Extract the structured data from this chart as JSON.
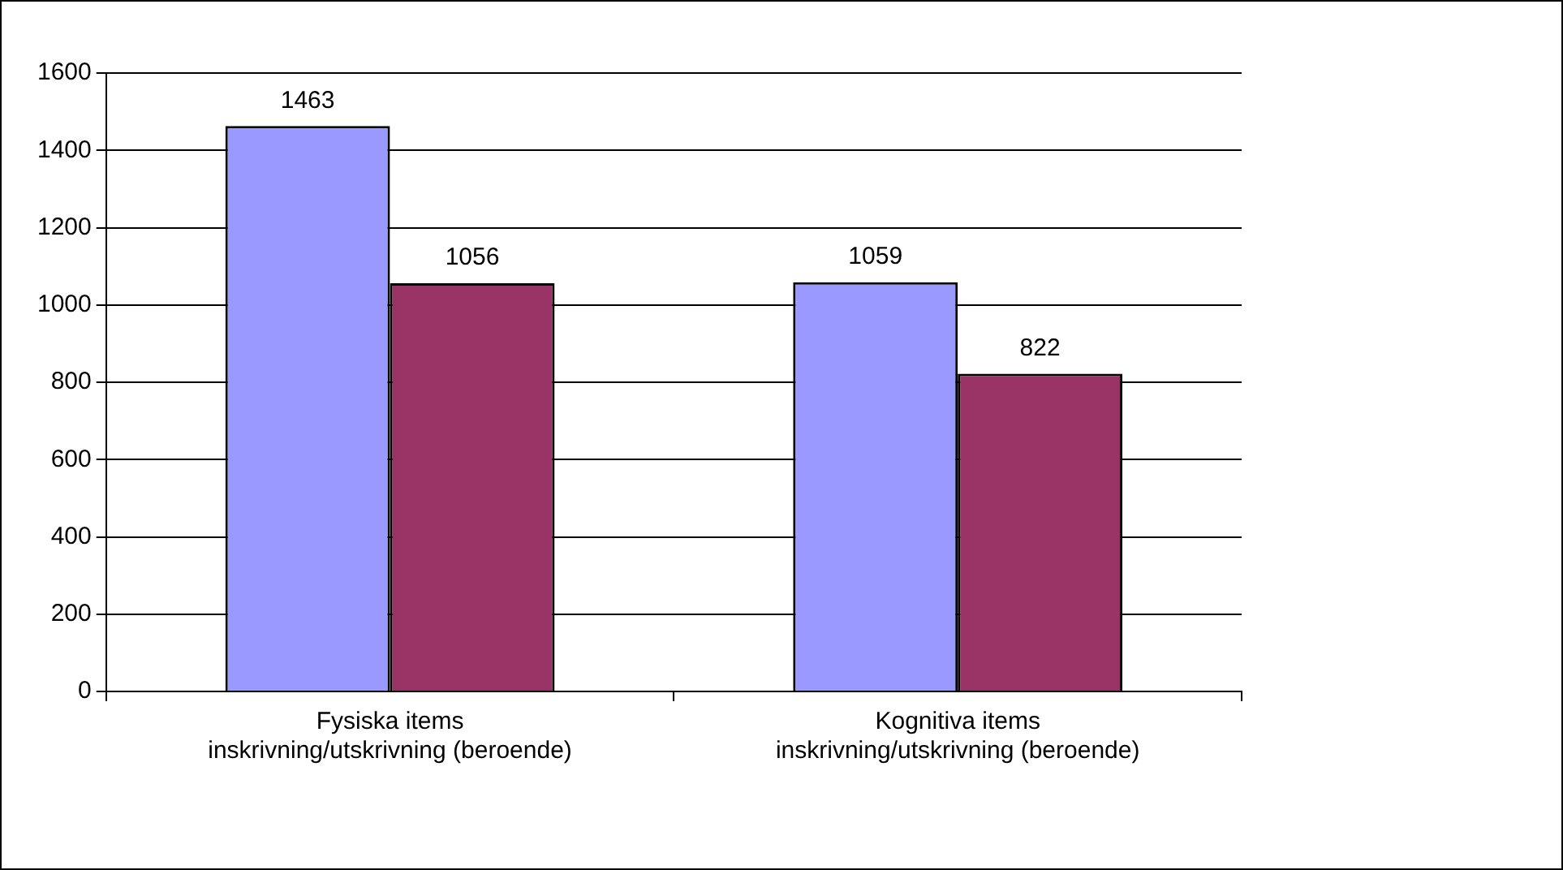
{
  "chart_data": {
    "type": "bar",
    "categories": [
      "Fysiska items\ninskrivning/utskrivning (beroende)",
      "Kognitiva items\ninskrivning/utskrivning (beroende)"
    ],
    "series": [
      {
        "color": "#9999ff",
        "values": [
          1463,
          1059
        ]
      },
      {
        "color": "#993366",
        "values": [
          1056,
          822
        ]
      }
    ],
    "ylim": [
      0,
      1600
    ],
    "yticks": [
      0,
      200,
      400,
      600,
      800,
      1000,
      1200,
      1400,
      1600
    ],
    "grid": "y",
    "legend": false,
    "data_labels": true
  }
}
